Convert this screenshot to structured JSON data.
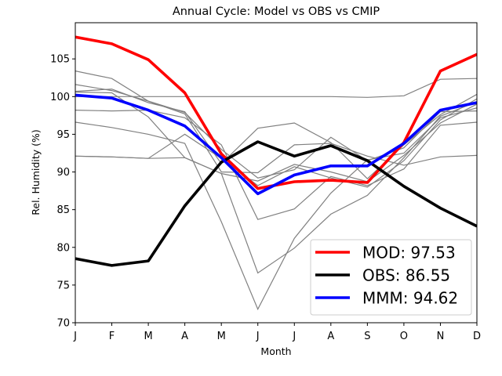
{
  "chart_data": {
    "type": "line",
    "title": "Annual Cycle: Model vs OBS vs CMIP",
    "xlabel": "Month",
    "ylabel": "Rel. Humidity (%)",
    "categories": [
      "J",
      "F",
      "M",
      "A",
      "M",
      "J",
      "J",
      "A",
      "S",
      "O",
      "N",
      "D"
    ],
    "ylim": [
      70,
      109.8
    ],
    "yticks": [
      70,
      75,
      80,
      85,
      90,
      95,
      100,
      105
    ],
    "grid": false,
    "legend_position": "lower-right",
    "series": [
      {
        "name": "MOD: 97.53",
        "role": "main",
        "color": "#ff0000",
        "values": [
          107.9,
          107.0,
          104.9,
          100.5,
          92.4,
          87.8,
          88.7,
          88.9,
          88.6,
          93.9,
          103.4,
          105.6
        ]
      },
      {
        "name": "OBS: 86.55",
        "role": "main",
        "color": "#000000",
        "values": [
          78.5,
          77.6,
          78.2,
          85.5,
          91.3,
          94.0,
          92.1,
          93.5,
          91.5,
          88.1,
          85.2,
          82.8
        ]
      },
      {
        "name": "MMM: 94.62",
        "role": "main",
        "color": "#0000ff",
        "values": [
          100.2,
          99.8,
          98.2,
          96.1,
          91.9,
          87.1,
          89.6,
          90.8,
          90.8,
          93.8,
          98.2,
          99.2
        ]
      }
    ],
    "ensemble_members": {
      "color": "#808080",
      "series": [
        [
          103.4,
          102.4,
          99.4,
          97.9,
          93.0,
          89.2,
          90.3,
          94.6,
          91.5,
          93.2,
          98.0,
          98.1
        ],
        [
          101.6,
          100.8,
          99.4,
          97.7,
          90.0,
          89.9,
          93.6,
          93.8,
          92.1,
          90.9,
          92.0,
          92.2
        ],
        [
          100.7,
          101.0,
          99.2,
          98.0,
          91.1,
          95.8,
          96.5,
          93.9,
          89.1,
          93.6,
          97.6,
          100.3
        ],
        [
          100.6,
          100.5,
          97.3,
          91.9,
          89.8,
          88.8,
          91.0,
          90.0,
          88.7,
          92.2,
          96.5,
          99.0
        ],
        [
          100.0,
          100.0,
          100.0,
          100.0,
          100.0,
          100.0,
          100.0,
          100.0,
          99.9,
          100.1,
          102.3,
          102.4
        ],
        [
          98.2,
          98.1,
          98.2,
          97.2,
          93.6,
          83.7,
          85.1,
          89.4,
          88.2,
          90.4,
          96.2,
          96.6
        ],
        [
          96.6,
          95.9,
          95.0,
          93.8,
          83.4,
          71.8,
          81.2,
          87.2,
          91.6,
          92.5,
          97.2,
          98.5
        ],
        [
          92.1,
          92.0,
          91.8,
          91.9,
          89.8,
          76.6,
          79.9,
          84.4,
          86.9,
          91.9,
          97.4,
          99.3
        ],
        [
          92.1,
          92.0,
          91.8,
          95.0,
          91.8,
          88.2,
          90.7,
          89.2,
          88.0,
          91.5,
          96.9,
          99.7
        ]
      ]
    }
  }
}
